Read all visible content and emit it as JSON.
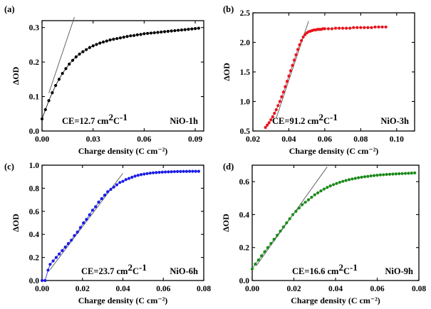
{
  "chart_data": [
    {
      "panel": "(a)",
      "type": "scatter",
      "xlabel": "Charge density (C cm⁻²)",
      "ylabel": "ΔOD",
      "xlim": [
        0,
        0.095
      ],
      "ylim": [
        0,
        0.32
      ],
      "xticks": [
        {
          "v": 0,
          "label": "0.00"
        },
        {
          "v": 0.03,
          "label": "0.03"
        },
        {
          "v": 0.06,
          "label": "0.06"
        },
        {
          "v": 0.09,
          "label": "0.09"
        }
      ],
      "yticks": [
        {
          "v": 0,
          "label": "0.0"
        },
        {
          "v": 0.1,
          "label": "0.1"
        },
        {
          "v": 0.2,
          "label": "0.2"
        },
        {
          "v": 0.3,
          "label": "0.3"
        }
      ],
      "ce_prefix": "CE=12.7 cm",
      "ce_sup1": "2",
      "ce_mid": "C",
      "ce_sup2": "-1",
      "sample": "NiO-1h",
      "color": "#000000",
      "points": {
        "x": [
          0.0,
          0.002,
          0.004,
          0.006,
          0.008,
          0.01,
          0.012,
          0.014,
          0.016,
          0.018,
          0.02,
          0.022,
          0.024,
          0.026,
          0.028,
          0.03,
          0.032,
          0.034,
          0.036,
          0.038,
          0.04,
          0.042,
          0.044,
          0.046,
          0.048,
          0.05,
          0.052,
          0.054,
          0.056,
          0.058,
          0.06,
          0.062,
          0.064,
          0.066,
          0.068,
          0.07,
          0.072,
          0.074,
          0.076,
          0.078,
          0.08,
          0.082,
          0.084,
          0.086,
          0.088,
          0.09,
          0.092
        ],
        "y": [
          0.035,
          0.062,
          0.088,
          0.111,
          0.132,
          0.15,
          0.167,
          0.181,
          0.194,
          0.205,
          0.215,
          0.223,
          0.23,
          0.236,
          0.242,
          0.247,
          0.251,
          0.255,
          0.258,
          0.261,
          0.264,
          0.266,
          0.268,
          0.27,
          0.272,
          0.274,
          0.276,
          0.277,
          0.279,
          0.28,
          0.282,
          0.283,
          0.284,
          0.285,
          0.286,
          0.287,
          0.288,
          0.289,
          0.29,
          0.291,
          0.292,
          0.293,
          0.294,
          0.295,
          0.296,
          0.297,
          0.298
        ]
      },
      "fit": {
        "x": [
          0.004,
          0.019
        ],
        "y": [
          0.11,
          0.33
        ]
      }
    },
    {
      "panel": "(b)",
      "type": "scatter",
      "xlabel": "Charge density (C cm⁻²)",
      "ylabel": "ΔOD",
      "xlim": [
        0.02,
        0.11
      ],
      "ylim": [
        0.5,
        2.5
      ],
      "xticks": [
        {
          "v": 0.02,
          "label": "0.02"
        },
        {
          "v": 0.04,
          "label": "0.04"
        },
        {
          "v": 0.06,
          "label": "0.06"
        },
        {
          "v": 0.08,
          "label": "0.08"
        },
        {
          "v": 0.1,
          "label": "0.10"
        }
      ],
      "yticks": [
        {
          "v": 0.5,
          "label": "0.5"
        },
        {
          "v": 1.0,
          "label": "1.0"
        },
        {
          "v": 1.5,
          "label": "1.5"
        },
        {
          "v": 2.0,
          "label": "2.0"
        },
        {
          "v": 2.5,
          "label": "2.5"
        }
      ],
      "ce_prefix": "CE=91.2 cm",
      "ce_sup1": "2",
      "ce_mid": "C",
      "ce_sup2": "-1",
      "sample": "NiO-3h",
      "color": "#e8141c",
      "points": {
        "x": [
          0.027,
          0.028,
          0.029,
          0.03,
          0.031,
          0.032,
          0.033,
          0.034,
          0.035,
          0.036,
          0.037,
          0.038,
          0.039,
          0.04,
          0.041,
          0.042,
          0.043,
          0.044,
          0.045,
          0.046,
          0.047,
          0.048,
          0.049,
          0.05,
          0.051,
          0.052,
          0.053,
          0.054,
          0.055,
          0.056,
          0.057,
          0.058,
          0.059,
          0.06,
          0.062,
          0.064,
          0.066,
          0.068,
          0.07,
          0.072,
          0.074,
          0.076,
          0.078,
          0.08,
          0.082,
          0.084,
          0.086,
          0.088,
          0.09,
          0.092,
          0.094
        ],
        "y": [
          0.56,
          0.6,
          0.64,
          0.69,
          0.74,
          0.8,
          0.86,
          0.93,
          1.0,
          1.08,
          1.16,
          1.25,
          1.34,
          1.43,
          1.52,
          1.61,
          1.7,
          1.79,
          1.88,
          1.96,
          2.03,
          2.09,
          2.13,
          2.16,
          2.18,
          2.19,
          2.2,
          2.21,
          2.21,
          2.22,
          2.22,
          2.22,
          2.23,
          2.23,
          2.23,
          2.23,
          2.24,
          2.24,
          2.24,
          2.24,
          2.24,
          2.25,
          2.25,
          2.25,
          2.25,
          2.25,
          2.25,
          2.26,
          2.26,
          2.26,
          2.26
        ]
      },
      "fit": {
        "x": [
          0.033,
          0.051
        ],
        "y": [
          0.72,
          2.36
        ]
      }
    },
    {
      "panel": "(c)",
      "type": "scatter",
      "xlabel": "Charge density (C cm⁻²)",
      "ylabel": "ΔOD",
      "xlim": [
        0,
        0.08
      ],
      "ylim": [
        0,
        1.0
      ],
      "xticks": [
        {
          "v": 0,
          "label": "0.00"
        },
        {
          "v": 0.02,
          "label": "0.02"
        },
        {
          "v": 0.04,
          "label": "0.04"
        },
        {
          "v": 0.06,
          "label": "0.06"
        },
        {
          "v": 0.08,
          "label": "0.08"
        }
      ],
      "yticks": [
        {
          "v": 0,
          "label": "0.0"
        },
        {
          "v": 0.2,
          "label": "0.2"
        },
        {
          "v": 0.4,
          "label": "0.4"
        },
        {
          "v": 0.6,
          "label": "0.6"
        },
        {
          "v": 0.8,
          "label": "0.8"
        },
        {
          "v": 1.0,
          "label": "1.0"
        }
      ],
      "ce_prefix": "CE=23.7 cm",
      "ce_sup1": "2",
      "ce_mid": "C",
      "ce_sup2": "-1",
      "sample": "NiO-6h",
      "color": "#1a1ae6",
      "points": {
        "x": [
          0.0,
          0.0015,
          0.003,
          0.004,
          0.0055,
          0.007,
          0.0085,
          0.01,
          0.0115,
          0.013,
          0.0145,
          0.016,
          0.0175,
          0.019,
          0.0205,
          0.022,
          0.0235,
          0.025,
          0.0265,
          0.028,
          0.0295,
          0.031,
          0.0325,
          0.034,
          0.0355,
          0.037,
          0.0385,
          0.04,
          0.0415,
          0.043,
          0.0445,
          0.046,
          0.0475,
          0.049,
          0.0505,
          0.052,
          0.0535,
          0.055,
          0.0565,
          0.058,
          0.0595,
          0.061,
          0.0625,
          0.064,
          0.0655,
          0.067,
          0.0685,
          0.07,
          0.0715,
          0.073,
          0.0745,
          0.076,
          0.0775
        ],
        "y": [
          0.0,
          0.0,
          0.09,
          0.14,
          0.17,
          0.2,
          0.23,
          0.26,
          0.29,
          0.32,
          0.35,
          0.39,
          0.42,
          0.46,
          0.5,
          0.53,
          0.57,
          0.61,
          0.64,
          0.68,
          0.71,
          0.74,
          0.77,
          0.79,
          0.81,
          0.83,
          0.85,
          0.86,
          0.875,
          0.885,
          0.895,
          0.905,
          0.912,
          0.918,
          0.923,
          0.927,
          0.931,
          0.934,
          0.936,
          0.938,
          0.94,
          0.941,
          0.942,
          0.943,
          0.944,
          0.945,
          0.945,
          0.946,
          0.946,
          0.947,
          0.947,
          0.947,
          0.947
        ]
      },
      "fit": {
        "x": [
          0.004,
          0.04
        ],
        "y": [
          0.095,
          0.93
        ]
      }
    },
    {
      "panel": "(d)",
      "type": "scatter",
      "xlabel": "Charge density (C cm⁻²)",
      "ylabel": "ΔOD",
      "xlim": [
        0,
        0.08
      ],
      "ylim": [
        0,
        0.7
      ],
      "xticks": [
        {
          "v": 0,
          "label": "0.00"
        },
        {
          "v": 0.02,
          "label": "0.02"
        },
        {
          "v": 0.04,
          "label": "0.04"
        },
        {
          "v": 0.06,
          "label": "0.06"
        },
        {
          "v": 0.08,
          "label": "0.08"
        }
      ],
      "yticks": [
        {
          "v": 0,
          "label": "0.0"
        },
        {
          "v": 0.2,
          "label": "0.2"
        },
        {
          "v": 0.4,
          "label": "0.4"
        },
        {
          "v": 0.6,
          "label": "0.6"
        }
      ],
      "ce_prefix": "CE=16.6 cm",
      "ce_sup1": "2",
      "ce_mid": "C",
      "ce_sup2": "-1",
      "sample": "NiO-9h",
      "color": "#1a8a1a",
      "points": {
        "x": [
          0.0,
          0.0015,
          0.003,
          0.0045,
          0.006,
          0.0075,
          0.009,
          0.0105,
          0.012,
          0.0135,
          0.015,
          0.0165,
          0.018,
          0.0195,
          0.021,
          0.0225,
          0.024,
          0.0255,
          0.027,
          0.0285,
          0.03,
          0.0315,
          0.033,
          0.0345,
          0.036,
          0.0375,
          0.039,
          0.0405,
          0.042,
          0.0435,
          0.045,
          0.0465,
          0.048,
          0.0495,
          0.051,
          0.0525,
          0.054,
          0.0555,
          0.057,
          0.0585,
          0.06,
          0.0615,
          0.063,
          0.0645,
          0.066,
          0.0675,
          0.069,
          0.0705,
          0.072,
          0.0735,
          0.075,
          0.0765,
          0.078
        ],
        "y": [
          0.07,
          0.1,
          0.125,
          0.15,
          0.175,
          0.2,
          0.225,
          0.25,
          0.275,
          0.3,
          0.325,
          0.35,
          0.375,
          0.4,
          0.42,
          0.44,
          0.46,
          0.475,
          0.49,
          0.505,
          0.52,
          0.532,
          0.544,
          0.555,
          0.565,
          0.574,
          0.582,
          0.589,
          0.596,
          0.602,
          0.607,
          0.612,
          0.616,
          0.62,
          0.624,
          0.627,
          0.63,
          0.632,
          0.635,
          0.637,
          0.639,
          0.641,
          0.642,
          0.644,
          0.645,
          0.646,
          0.647,
          0.648,
          0.649,
          0.65,
          0.651,
          0.652,
          0.653
        ]
      },
      "fit": {
        "x": [
          0.002,
          0.036
        ],
        "y": [
          0.09,
          0.69
        ]
      }
    }
  ]
}
